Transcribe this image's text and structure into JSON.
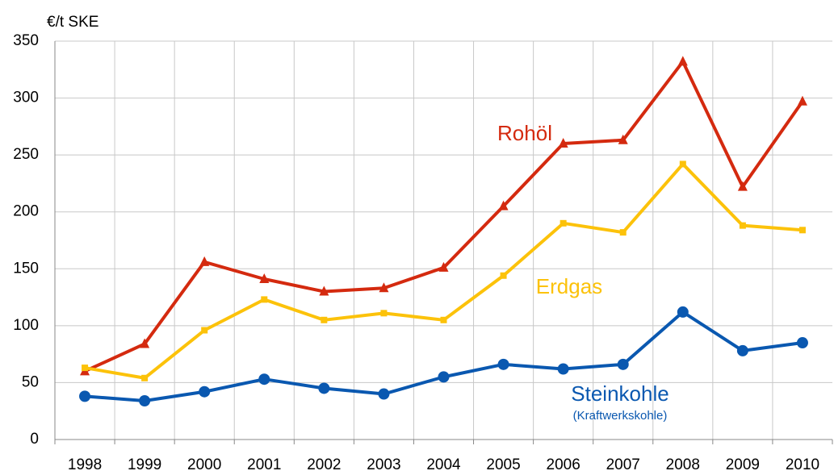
{
  "chart_data": {
    "type": "line",
    "y_label": "€/t SKE",
    "categories": [
      "1998",
      "1999",
      "2000",
      "2001",
      "2002",
      "2003",
      "2004",
      "2005",
      "2006",
      "2007",
      "2008",
      "2009",
      "2010"
    ],
    "series": [
      {
        "name": "Rohöl",
        "color": "#d42a0f",
        "marker": "triangle",
        "values": [
          60,
          84,
          156,
          141,
          130,
          133,
          151,
          205,
          260,
          263,
          332,
          222,
          297
        ]
      },
      {
        "name": "Erdgas",
        "color": "#fcc20a",
        "marker": "square",
        "values": [
          63,
          54,
          96,
          123,
          105,
          111,
          105,
          144,
          190,
          182,
          242,
          188,
          184
        ]
      },
      {
        "name": "Steinkohle",
        "color": "#0a58b0",
        "marker": "circle",
        "note": "(Kraftwerkskohle)",
        "values": [
          38,
          34,
          42,
          53,
          45,
          40,
          55,
          66,
          62,
          66,
          112,
          78,
          85
        ]
      }
    ],
    "ylim": [
      0,
      350
    ],
    "yticks": [
      0,
      50,
      100,
      150,
      200,
      250,
      300,
      350
    ],
    "grid": true
  }
}
